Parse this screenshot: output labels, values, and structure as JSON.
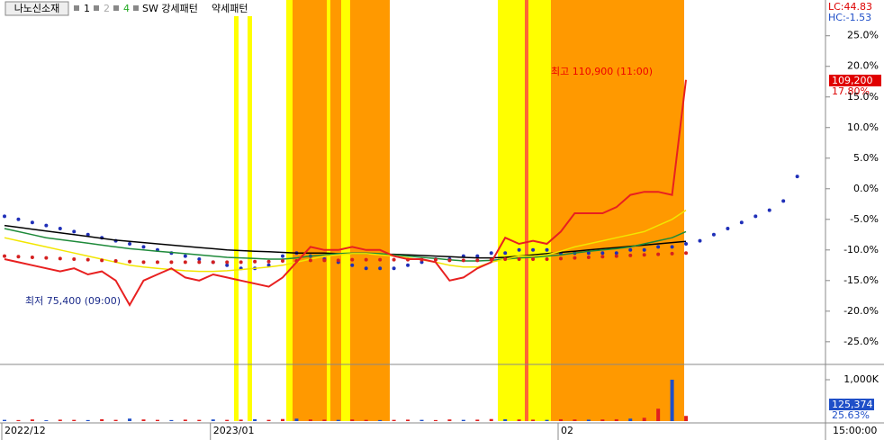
{
  "toolbar": {
    "title": "나노신소재",
    "items": [
      "1",
      "2",
      "4"
    ],
    "patterns": [
      "SW 강세패턴",
      "약세패턴"
    ]
  },
  "chart_data": {
    "type": "line",
    "x": [
      "2022/12",
      null,
      null,
      null,
      null,
      null,
      null,
      null,
      null,
      null,
      null,
      null,
      null,
      null,
      null,
      "2023/01",
      null,
      null,
      null,
      null,
      null,
      null,
      null,
      null,
      null,
      null,
      null,
      null,
      null,
      null,
      null,
      null,
      null,
      null,
      null,
      null,
      null,
      null,
      null,
      null,
      "02",
      null,
      null,
      null,
      null,
      null,
      null,
      null,
      null,
      null,
      null,
      null,
      null,
      null,
      null,
      null,
      null,
      null
    ],
    "series": [
      {
        "color": "#1f2fb8",
        "style": "dotted",
        "values": [
          -4.5,
          -5,
          -5.5,
          -6,
          -6.5,
          -7,
          -7.5,
          -8,
          -8.5,
          -9,
          -9.5,
          -10,
          -10.5,
          -11,
          -11.5,
          -12,
          -12.5,
          -13,
          -13,
          -12.5,
          -11,
          -10.5,
          -11,
          -11.5,
          -12,
          -12.5,
          -13,
          -13,
          -13,
          -12.5,
          -12,
          -11.5,
          -11.5,
          -11,
          -11,
          -10.5,
          -10.5,
          -10,
          -10,
          -10,
          -10.5,
          -10.5,
          -10.5,
          -10.5,
          -10.5,
          -10,
          -10,
          -9.5,
          -9.5,
          -9,
          -8.5,
          -7.5,
          -6.5,
          -5.5,
          -4.5,
          -3.5,
          -2,
          2
        ]
      },
      {
        "color": "#000000",
        "style": "solid",
        "values": [
          -6,
          -6.3,
          -6.6,
          -6.9,
          -7.2,
          -7.5,
          -7.8,
          -8.1,
          -8.4,
          -8.6,
          -8.8,
          -9,
          -9.2,
          -9.4,
          -9.6,
          -9.8,
          -10,
          -10.1,
          -10.2,
          -10.3,
          -10.4,
          -10.5,
          -10.5,
          -10.5,
          -10.6,
          -10.6,
          -10.6,
          -10.7,
          -10.7,
          -10.8,
          -10.9,
          -11,
          -11.1,
          -11.2,
          -11.3,
          -11.3,
          -11.2,
          -11,
          -10.8,
          -10.6,
          -10.4,
          -10.2,
          -10,
          -9.8,
          -9.6,
          -9.4,
          -9.2,
          -9,
          -8.8,
          -8.6,
          null,
          null,
          null,
          null,
          null,
          null,
          null,
          null
        ]
      },
      {
        "color": "#1e8a3a",
        "style": "solid",
        "values": [
          -6.5,
          -7,
          -7.5,
          -8,
          -8.3,
          -8.6,
          -8.9,
          -9.2,
          -9.5,
          -9.8,
          -10,
          -10.2,
          -10.4,
          -10.6,
          -10.8,
          -11,
          -11.2,
          -11.3,
          -11.4,
          -11.5,
          -11.5,
          -11.3,
          -11,
          -10.8,
          -10.6,
          -10.5,
          -10.5,
          -10.6,
          -10.8,
          -11,
          -11.2,
          -11.4,
          -11.6,
          -11.8,
          -11.8,
          -11.7,
          -11.5,
          -11.3,
          -11.2,
          -11,
          -10.8,
          -10.5,
          -10.2,
          -10,
          -9.8,
          -9.5,
          -9,
          -8.5,
          -8,
          -7,
          null,
          null,
          null,
          null,
          null,
          null,
          null,
          null
        ]
      },
      {
        "color": "#f2e600",
        "style": "solid",
        "values": [
          -8,
          -8.5,
          -9,
          -9.5,
          -10,
          -10.5,
          -11,
          -11.5,
          -12,
          -12.5,
          -12.8,
          -13,
          -13.2,
          -13.4,
          -13.5,
          -13.5,
          -13.4,
          -13.2,
          -13,
          -12.8,
          -12.5,
          -12,
          -11.5,
          -11,
          -10.8,
          -10.6,
          -10.6,
          -10.8,
          -11,
          -11.3,
          -11.6,
          -12,
          -12.5,
          -12.8,
          -12.8,
          -12,
          -11.5,
          -11,
          -11,
          -10.8,
          -10.2,
          -9.5,
          -9,
          -8.5,
          -8,
          -7.5,
          -7,
          -6,
          -5,
          -3.5,
          null,
          null,
          null,
          null,
          null,
          null,
          null,
          null
        ]
      },
      {
        "color": "#d42020",
        "style": "dotted",
        "values": [
          -11,
          -11.1,
          -11.2,
          -11.3,
          -11.4,
          -11.5,
          -11.6,
          -11.7,
          -11.8,
          -11.9,
          -12,
          -12,
          -12,
          -12,
          -12,
          -12,
          -12,
          -12,
          -11.9,
          -11.9,
          -11.8,
          -11.8,
          -11.7,
          -11.7,
          -11.7,
          -11.6,
          -11.6,
          -11.6,
          -11.6,
          -11.6,
          -11.6,
          -11.6,
          -11.7,
          -11.7,
          -11.7,
          -11.6,
          -11.5,
          -11.5,
          -11.5,
          -11.5,
          -11.4,
          -11.3,
          -11.2,
          -11.1,
          -11,
          -10.9,
          -10.8,
          -10.7,
          -10.6,
          -10.5,
          null,
          null,
          null,
          null,
          null,
          null,
          null,
          null
        ]
      },
      {
        "color": "#e82020",
        "style": "solid",
        "values": [
          -11.5,
          -12,
          -12.5,
          -13,
          -13.5,
          -13,
          -14,
          -13.5,
          -15,
          -19,
          -15,
          -14,
          -13,
          -14.5,
          -15,
          -14,
          -14.5,
          -15,
          -15.5,
          -16,
          -14.5,
          -12,
          -9.5,
          -10,
          -10,
          -9.5,
          -10,
          -10,
          -11,
          -11.5,
          -11.5,
          -12,
          -15,
          -14.5,
          -13,
          -12,
          -8,
          -9,
          -8.5,
          -9,
          -7,
          -4,
          -4,
          -4,
          -3,
          -1,
          -0.5,
          -0.5,
          -1,
          17.8,
          null,
          null,
          null,
          null,
          null,
          null,
          null,
          null
        ]
      }
    ],
    "ylim": [
      -28.7,
      30.4
    ],
    "yticks": [
      {
        "value": 25,
        "label": "25.0%"
      },
      {
        "value": 20,
        "label": "20.0%"
      },
      {
        "value": 15,
        "label": "15.0%"
      },
      {
        "value": 10,
        "label": "10.0%"
      },
      {
        "value": 5,
        "label": "5.0%"
      },
      {
        "value": 0,
        "label": "0.0%"
      },
      {
        "value": -5,
        "label": "-5.0%"
      },
      {
        "value": -10,
        "label": "-10.0%"
      },
      {
        "value": -15,
        "label": "-15.0%"
      },
      {
        "value": -20,
        "label": "-20.0%"
      },
      {
        "value": -25,
        "label": "-25.0%"
      }
    ],
    "annotations": [
      "최고 110,900 (11:00)",
      "최저 75,400 (09:00)"
    ],
    "price_labels": {
      "lc": "LC:44.83",
      "hc": "HC:-1.53",
      "last": "109,200",
      "last_pct": "17.80%"
    },
    "volume": {
      "values": [
        30000,
        25000,
        40000,
        20000,
        35000,
        30000,
        25000,
        45000,
        30000,
        60000,
        40000,
        30000,
        25000,
        35000,
        30000,
        40000,
        30000,
        35000,
        45000,
        30000,
        50000,
        60000,
        40000,
        35000,
        30000,
        40000,
        30000,
        25000,
        30000,
        35000,
        30000,
        25000,
        40000,
        30000,
        35000,
        50000,
        45000,
        40000,
        35000,
        30000,
        45000,
        40000,
        35000,
        40000,
        45000,
        60000,
        80000,
        300000,
        1000000,
        125374,
        null,
        null,
        null,
        null,
        null,
        null,
        null,
        null
      ],
      "ylim": [
        0,
        1304000
      ],
      "yticks": [
        {
          "value": 1000000,
          "label": "1,000K"
        }
      ],
      "last_label": "125,374",
      "last_pct": "25.63%"
    },
    "time_label": "15:00:00"
  }
}
